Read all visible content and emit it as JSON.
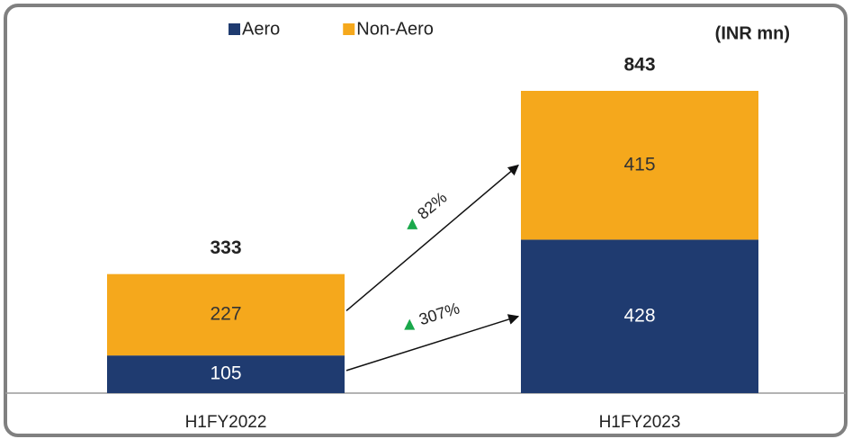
{
  "chart_data": {
    "type": "stacked_bar",
    "unit_label": "(INR mn)",
    "categories": [
      "H1FY2022",
      "H1FY2023"
    ],
    "series": [
      {
        "name": "Aero",
        "color": "#1f3b70",
        "label_color": "#ffffff",
        "values": [
          105,
          428
        ]
      },
      {
        "name": "Non-Aero",
        "color": "#f5a81c",
        "label_color": "#333333",
        "values": [
          227,
          415
        ]
      }
    ],
    "totals": [
      333,
      843
    ],
    "annotations": [
      "82%",
      "307%"
    ],
    "annotation_marker_color": "#1aa84b"
  }
}
